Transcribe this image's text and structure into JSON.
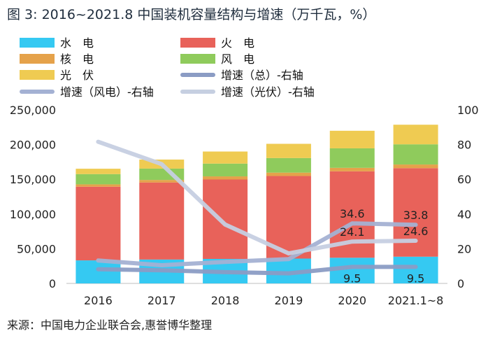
{
  "title": "图 3: 2016~2021.8 中国装机容量结构与增速（万千瓦，%）",
  "source": "来源：中国电力企业联合会,惠誉博华整理",
  "chart_data": {
    "type": "bar",
    "stacked": true,
    "categories": [
      "2016",
      "2017",
      "2018",
      "2019",
      "2020",
      "2021.1~8"
    ],
    "series": [
      {
        "name": "水　电",
        "kind": "bar",
        "color": "#35c9f2",
        "values": [
          33200,
          34400,
          35300,
          35800,
          37000,
          38500
        ]
      },
      {
        "name": "火　电",
        "kind": "bar",
        "color": "#e8625a",
        "values": [
          106100,
          111000,
          114400,
          118900,
          124500,
          127500
        ]
      },
      {
        "name": "核　电",
        "kind": "bar",
        "color": "#e5a24a",
        "values": [
          3400,
          3600,
          4500,
          4900,
          5000,
          5300
        ]
      },
      {
        "name": "风　电",
        "kind": "bar",
        "color": "#8fcb5c",
        "values": [
          14800,
          16400,
          18400,
          21000,
          28100,
          29100
        ]
      },
      {
        "name": "光　伏",
        "kind": "bar",
        "color": "#efcb52",
        "values": [
          7700,
          13000,
          17400,
          20500,
          25300,
          28200
        ]
      },
      {
        "name": "增速（总）-右轴",
        "kind": "line",
        "axis": "right",
        "color": "#8b9cc4",
        "values": [
          8.2,
          7.6,
          6.5,
          5.8,
          9.5,
          9.5
        ]
      },
      {
        "name": "增速（风电）-右轴",
        "kind": "line",
        "axis": "right",
        "color": "#a4b1d3",
        "values": [
          13.2,
          10.5,
          12.4,
          14.0,
          34.6,
          33.8
        ]
      },
      {
        "name": "增速（光伏）-右轴",
        "kind": "line",
        "axis": "right",
        "color": "#c6cfe1",
        "values": [
          81.6,
          68.7,
          33.9,
          17.3,
          24.1,
          24.6
        ]
      }
    ],
    "data_labels": [
      {
        "series": 5,
        "index": 4,
        "text": "9.5"
      },
      {
        "series": 5,
        "index": 5,
        "text": "9.5"
      },
      {
        "series": 6,
        "index": 4,
        "text": "34.6"
      },
      {
        "series": 6,
        "index": 5,
        "text": "33.8"
      },
      {
        "series": 7,
        "index": 4,
        "text": "24.1"
      },
      {
        "series": 7,
        "index": 5,
        "text": "24.6"
      }
    ],
    "ylim": [
      0,
      250000
    ],
    "yticks": [
      "0",
      "50,000",
      "100,000",
      "150,000",
      "200,000",
      "250,000"
    ],
    "y2lim": [
      0,
      100
    ],
    "y2ticks": [
      "0",
      "20",
      "40",
      "60",
      "80",
      "100"
    ],
    "grid": false,
    "legend": "top"
  }
}
